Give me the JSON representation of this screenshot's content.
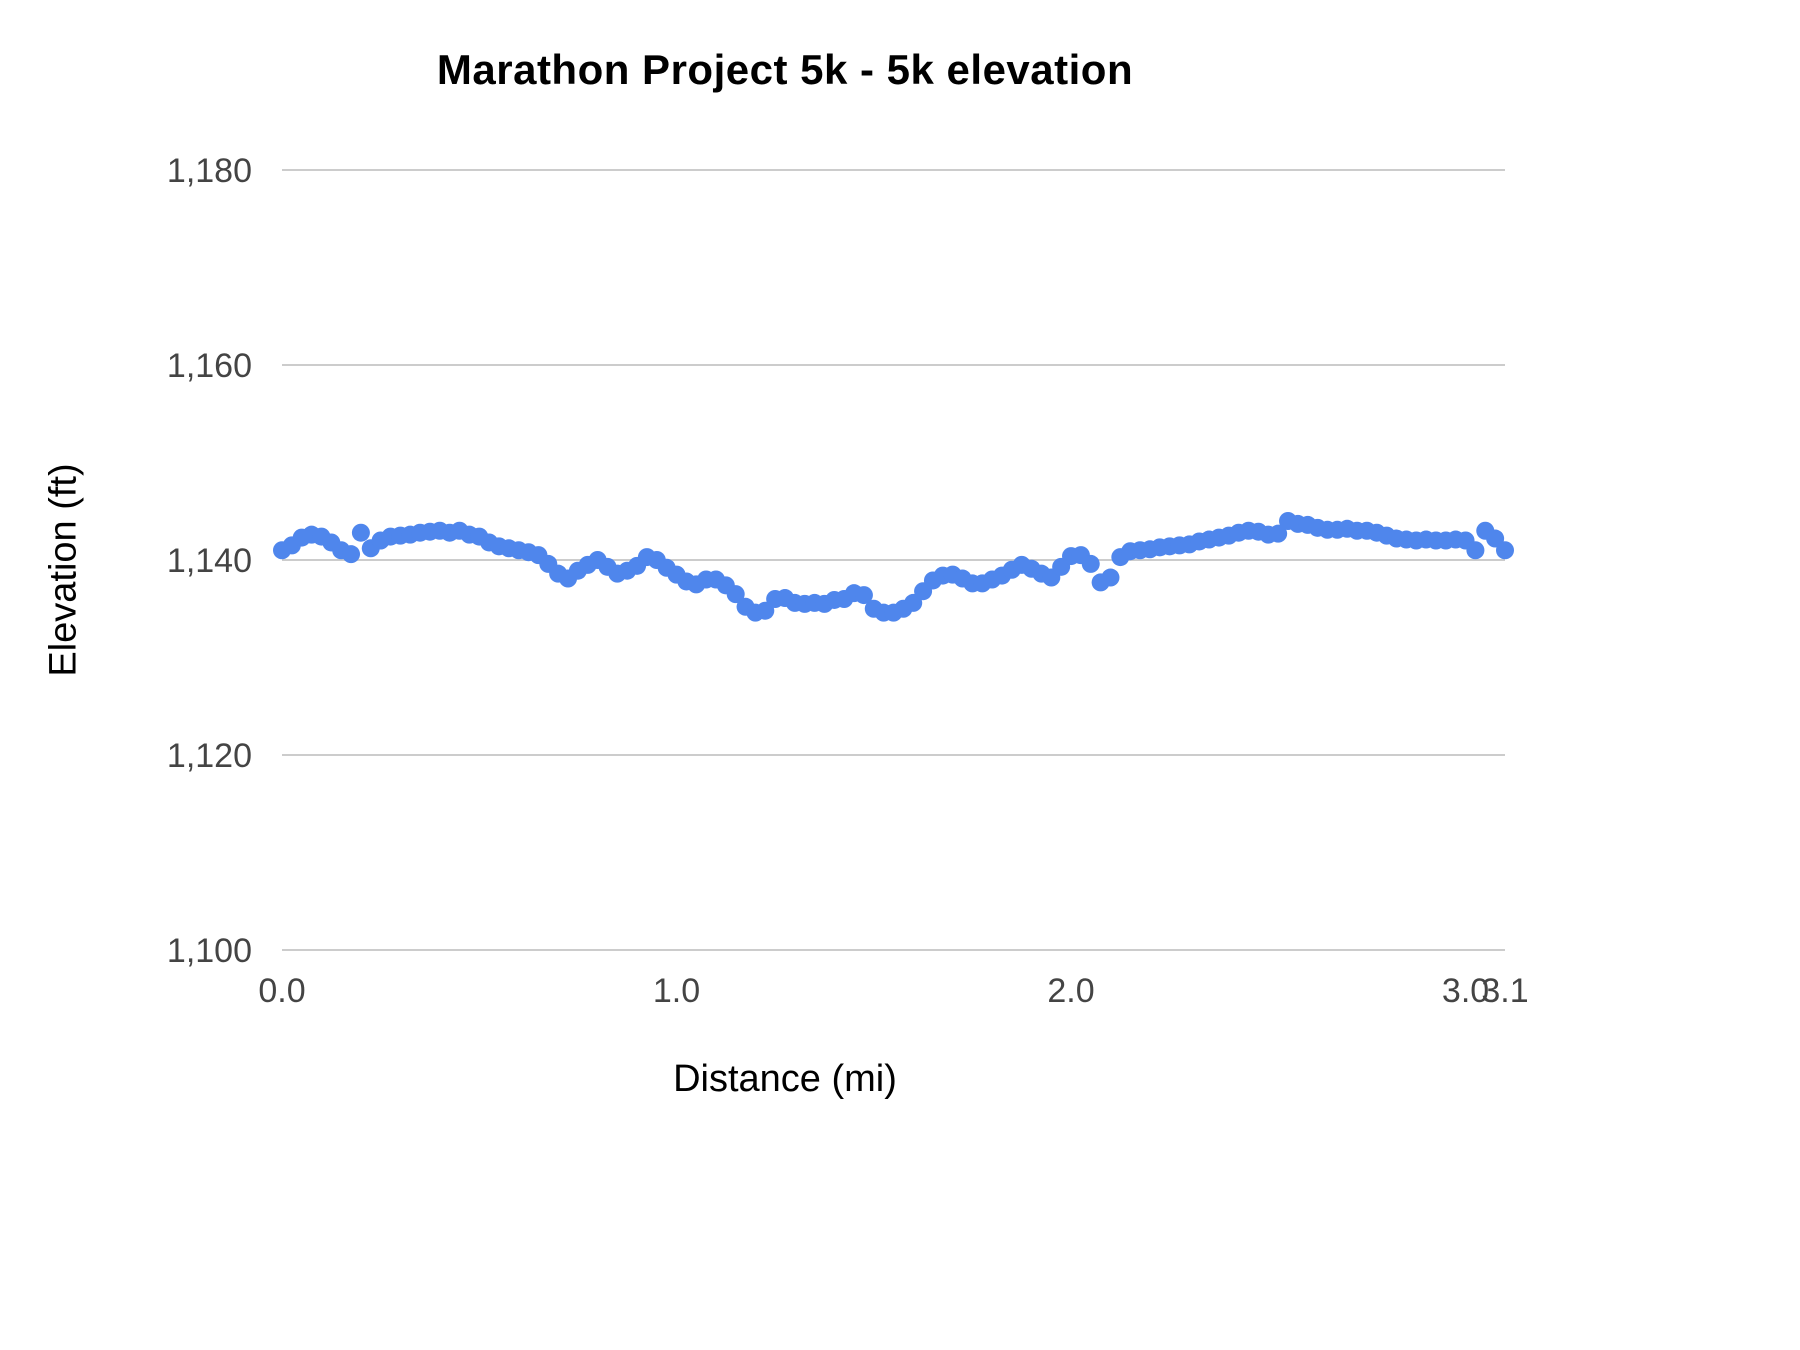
{
  "title": "Marathon Project 5k - 5k elevation",
  "colors": {
    "dot": "#4f86ec",
    "grid": "#cccccc",
    "title_text": "#000000",
    "axis_title_text": "#000000",
    "tick_text": "#444444",
    "background": "#ffffff"
  },
  "chart_data": {
    "type": "scatter",
    "title": "Marathon Project 5k - 5k elevation",
    "xlabel": "Distance (mi)",
    "ylabel": "Elevation (ft)",
    "xlim": [
      0,
      3.1
    ],
    "ylim": [
      1100,
      1180
    ],
    "grid": "horizontal-only",
    "legend": "none",
    "xticks": {
      "values": [
        0,
        1,
        2,
        3,
        3.1
      ],
      "labels": [
        "0.0",
        "1.0",
        "2.0",
        "3.0",
        "3.1"
      ]
    },
    "yticks": {
      "values": [
        1100,
        1120,
        1140,
        1160,
        1180
      ],
      "labels": [
        "1,100",
        "1,120",
        "1,140",
        "1,160",
        "1,180"
      ]
    },
    "series": [
      {
        "name": "5k elevation",
        "x": [
          0,
          0.025,
          0.05,
          0.075,
          0.1,
          0.125,
          0.15,
          0.175,
          0.2,
          0.225,
          0.25,
          0.275,
          0.3,
          0.325,
          0.35,
          0.375,
          0.4,
          0.425,
          0.45,
          0.475,
          0.5,
          0.525,
          0.55,
          0.575,
          0.6,
          0.625,
          0.65,
          0.675,
          0.7,
          0.725,
          0.75,
          0.775,
          0.8,
          0.825,
          0.85,
          0.875,
          0.9,
          0.925,
          0.95,
          0.975,
          1,
          1.025,
          1.05,
          1.075,
          1.1,
          1.125,
          1.15,
          1.175,
          1.2,
          1.225,
          1.25,
          1.275,
          1.3,
          1.325,
          1.35,
          1.375,
          1.4,
          1.425,
          1.45,
          1.475,
          1.5,
          1.525,
          1.55,
          1.575,
          1.6,
          1.625,
          1.65,
          1.675,
          1.7,
          1.725,
          1.75,
          1.775,
          1.8,
          1.825,
          1.85,
          1.875,
          1.9,
          1.925,
          1.95,
          1.975,
          2,
          2.025,
          2.05,
          2.075,
          2.1,
          2.125,
          2.15,
          2.175,
          2.2,
          2.225,
          2.25,
          2.275,
          2.3,
          2.325,
          2.35,
          2.375,
          2.4,
          2.425,
          2.45,
          2.475,
          2.5,
          2.525,
          2.55,
          2.575,
          2.6,
          2.625,
          2.65,
          2.675,
          2.7,
          2.725,
          2.75,
          2.775,
          2.8,
          2.825,
          2.85,
          2.875,
          2.9,
          2.925,
          2.95,
          2.975,
          3,
          3.025,
          3.05,
          3.075,
          3.1
        ],
        "y": [
          1141.0,
          1141.5,
          1142.3,
          1142.6,
          1142.4,
          1141.8,
          1141.0,
          1140.6,
          1142.8,
          1141.2,
          1142.0,
          1142.4,
          1142.5,
          1142.6,
          1142.8,
          1142.9,
          1143.0,
          1142.8,
          1143.0,
          1142.6,
          1142.4,
          1141.8,
          1141.4,
          1141.2,
          1141.0,
          1140.8,
          1140.5,
          1139.6,
          1138.6,
          1138.1,
          1138.9,
          1139.5,
          1140.0,
          1139.3,
          1138.6,
          1138.9,
          1139.4,
          1140.3,
          1140.0,
          1139.2,
          1138.5,
          1137.8,
          1137.5,
          1138.0,
          1138.0,
          1137.4,
          1136.5,
          1135.2,
          1134.6,
          1134.8,
          1136.0,
          1136.1,
          1135.6,
          1135.5,
          1135.6,
          1135.5,
          1135.9,
          1136.0,
          1136.6,
          1136.4,
          1135.0,
          1134.6,
          1134.6,
          1135.0,
          1135.6,
          1136.8,
          1137.9,
          1138.4,
          1138.5,
          1138.1,
          1137.6,
          1137.6,
          1138.0,
          1138.4,
          1139.0,
          1139.5,
          1139.1,
          1138.6,
          1138.2,
          1139.3,
          1140.4,
          1140.5,
          1139.6,
          1137.7,
          1138.2,
          1140.3,
          1140.9,
          1141.0,
          1141.1,
          1141.3,
          1141.4,
          1141.5,
          1141.6,
          1141.9,
          1142.1,
          1142.3,
          1142.5,
          1142.8,
          1143.0,
          1142.9,
          1142.6,
          1142.7,
          1144.0,
          1143.7,
          1143.6,
          1143.3,
          1143.1,
          1143.1,
          1143.2,
          1143.0,
          1143.0,
          1142.8,
          1142.5,
          1142.2,
          1142.1,
          1142.0,
          1142.1,
          1142.0,
          1142.0,
          1142.1,
          1142.0,
          1141.0,
          1143.0,
          1142.2,
          1141.0
        ]
      }
    ]
  }
}
